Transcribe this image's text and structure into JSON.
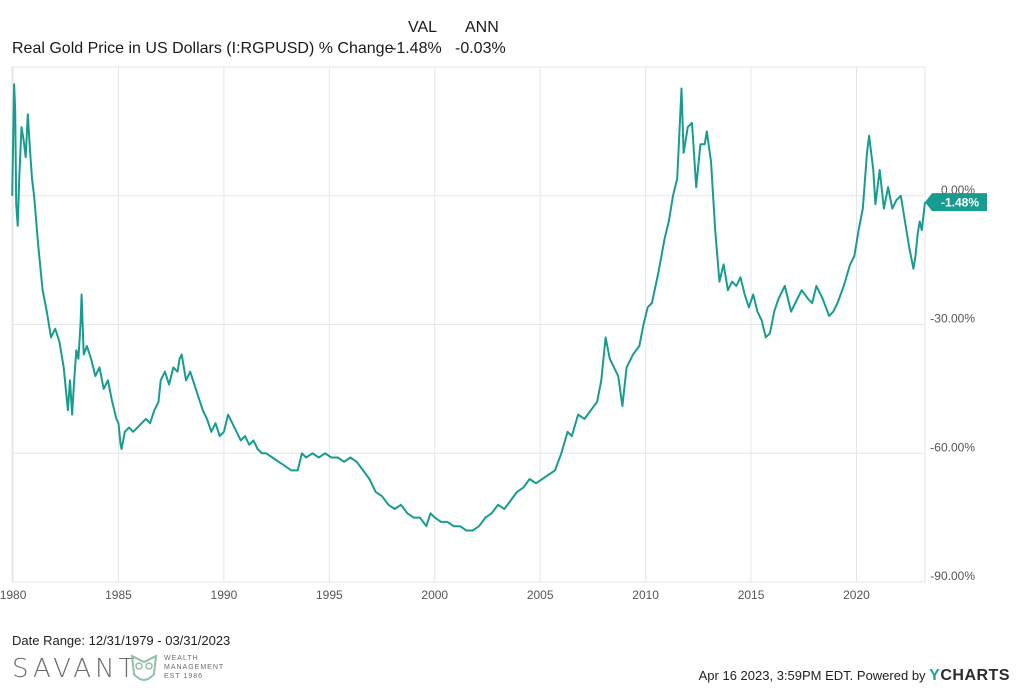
{
  "header": {
    "val_label": "VAL",
    "ann_label": "ANN",
    "series_name": "Real Gold Price in US Dollars (I:RGPUSD) % Change",
    "series_val": "-1.48%",
    "series_ann": "-0.03%"
  },
  "chart_data": {
    "type": "line",
    "title": "",
    "xlabel": "",
    "ylabel": "",
    "x_ticks": [
      "1980",
      "1985",
      "1990",
      "1995",
      "2000",
      "2005",
      "2010",
      "2015",
      "2020"
    ],
    "y_ticks": [
      "0.00%",
      "-30.00%",
      "-60.00%",
      "-90.00%"
    ],
    "ylim": [
      -90,
      30
    ],
    "xlim": [
      1979.95,
      2023.25
    ],
    "grid": true,
    "last_value_label": "-1.48%",
    "series": [
      {
        "values": [
          [
            1979.96,
            0.0
          ],
          [
            1980.05,
            26
          ],
          [
            1980.1,
            20
          ],
          [
            1980.15,
            -2
          ],
          [
            1980.22,
            -7
          ],
          [
            1980.3,
            5
          ],
          [
            1980.4,
            16
          ],
          [
            1980.5,
            13
          ],
          [
            1980.6,
            9
          ],
          [
            1980.7,
            19
          ],
          [
            1980.8,
            11
          ],
          [
            1980.9,
            4
          ],
          [
            1981.0,
            0
          ],
          [
            1981.2,
            -12
          ],
          [
            1981.4,
            -22
          ],
          [
            1981.6,
            -27
          ],
          [
            1981.8,
            -33
          ],
          [
            1982.0,
            -31
          ],
          [
            1982.2,
            -34
          ],
          [
            1982.4,
            -40
          ],
          [
            1982.6,
            -50
          ],
          [
            1982.7,
            -43
          ],
          [
            1982.8,
            -51
          ],
          [
            1982.9,
            -43
          ],
          [
            1983.0,
            -36
          ],
          [
            1983.1,
            -38
          ],
          [
            1983.2,
            -30
          ],
          [
            1983.25,
            -23
          ],
          [
            1983.35,
            -37
          ],
          [
            1983.5,
            -35
          ],
          [
            1983.7,
            -38
          ],
          [
            1983.9,
            -42
          ],
          [
            1984.1,
            -40
          ],
          [
            1984.3,
            -45
          ],
          [
            1984.5,
            -43
          ],
          [
            1984.7,
            -48
          ],
          [
            1984.9,
            -52
          ],
          [
            1985.0,
            -53
          ],
          [
            1985.1,
            -58
          ],
          [
            1985.15,
            -59
          ],
          [
            1985.3,
            -55
          ],
          [
            1985.5,
            -54
          ],
          [
            1985.7,
            -55
          ],
          [
            1985.9,
            -54
          ],
          [
            1986.1,
            -53
          ],
          [
            1986.3,
            -52
          ],
          [
            1986.5,
            -53
          ],
          [
            1986.7,
            -50
          ],
          [
            1986.9,
            -48
          ],
          [
            1987.0,
            -43
          ],
          [
            1987.2,
            -41
          ],
          [
            1987.4,
            -44
          ],
          [
            1987.6,
            -40
          ],
          [
            1987.8,
            -41
          ],
          [
            1987.9,
            -38
          ],
          [
            1988.0,
            -37
          ],
          [
            1988.2,
            -43
          ],
          [
            1988.4,
            -41
          ],
          [
            1988.6,
            -44
          ],
          [
            1988.8,
            -47
          ],
          [
            1989.0,
            -50
          ],
          [
            1989.2,
            -52
          ],
          [
            1989.4,
            -55
          ],
          [
            1989.6,
            -53
          ],
          [
            1989.8,
            -56
          ],
          [
            1990.0,
            -55
          ],
          [
            1990.2,
            -51
          ],
          [
            1990.4,
            -53
          ],
          [
            1990.6,
            -55
          ],
          [
            1990.8,
            -57
          ],
          [
            1991.0,
            -56
          ],
          [
            1991.2,
            -58
          ],
          [
            1991.4,
            -57
          ],
          [
            1991.6,
            -59
          ],
          [
            1991.8,
            -60
          ],
          [
            1992.0,
            -60
          ],
          [
            1992.3,
            -61
          ],
          [
            1992.6,
            -62
          ],
          [
            1992.9,
            -63
          ],
          [
            1993.2,
            -64
          ],
          [
            1993.5,
            -64
          ],
          [
            1993.7,
            -60
          ],
          [
            1993.9,
            -61
          ],
          [
            1994.2,
            -60
          ],
          [
            1994.5,
            -61
          ],
          [
            1994.8,
            -60
          ],
          [
            1995.1,
            -61
          ],
          [
            1995.4,
            -61
          ],
          [
            1995.7,
            -62
          ],
          [
            1996.0,
            -61
          ],
          [
            1996.3,
            -62
          ],
          [
            1996.6,
            -64
          ],
          [
            1996.9,
            -66
          ],
          [
            1997.2,
            -69
          ],
          [
            1997.5,
            -70
          ],
          [
            1997.8,
            -72
          ],
          [
            1998.1,
            -73
          ],
          [
            1998.4,
            -72
          ],
          [
            1998.7,
            -74
          ],
          [
            1999.0,
            -75
          ],
          [
            1999.3,
            -75
          ],
          [
            1999.6,
            -77
          ],
          [
            1999.8,
            -74
          ],
          [
            2000.0,
            -75
          ],
          [
            2000.3,
            -76
          ],
          [
            2000.6,
            -76
          ],
          [
            2000.9,
            -77
          ],
          [
            2001.2,
            -77
          ],
          [
            2001.5,
            -78
          ],
          [
            2001.8,
            -78
          ],
          [
            2002.1,
            -77
          ],
          [
            2002.4,
            -75
          ],
          [
            2002.7,
            -74
          ],
          [
            2003.0,
            -72
          ],
          [
            2003.3,
            -73
          ],
          [
            2003.6,
            -71
          ],
          [
            2003.9,
            -69
          ],
          [
            2004.2,
            -68
          ],
          [
            2004.5,
            -66
          ],
          [
            2004.8,
            -67
          ],
          [
            2005.1,
            -66
          ],
          [
            2005.4,
            -65
          ],
          [
            2005.7,
            -64
          ],
          [
            2006.0,
            -60
          ],
          [
            2006.3,
            -55
          ],
          [
            2006.5,
            -56
          ],
          [
            2006.8,
            -51
          ],
          [
            2007.1,
            -52
          ],
          [
            2007.4,
            -50
          ],
          [
            2007.7,
            -48
          ],
          [
            2007.9,
            -43
          ],
          [
            2008.1,
            -33
          ],
          [
            2008.3,
            -38
          ],
          [
            2008.5,
            -40
          ],
          [
            2008.7,
            -42
          ],
          [
            2008.9,
            -49
          ],
          [
            2009.1,
            -40
          ],
          [
            2009.4,
            -37
          ],
          [
            2009.7,
            -35
          ],
          [
            2009.9,
            -30
          ],
          [
            2010.1,
            -26
          ],
          [
            2010.3,
            -25
          ],
          [
            2010.6,
            -18
          ],
          [
            2010.9,
            -10
          ],
          [
            2011.1,
            -6
          ],
          [
            2011.3,
            0
          ],
          [
            2011.5,
            4
          ],
          [
            2011.7,
            25
          ],
          [
            2011.8,
            10
          ],
          [
            2012.0,
            16
          ],
          [
            2012.2,
            17
          ],
          [
            2012.4,
            2
          ],
          [
            2012.6,
            12
          ],
          [
            2012.8,
            12
          ],
          [
            2012.9,
            15
          ],
          [
            2013.1,
            8
          ],
          [
            2013.3,
            -8
          ],
          [
            2013.5,
            -20
          ],
          [
            2013.7,
            -16
          ],
          [
            2013.9,
            -22
          ],
          [
            2014.1,
            -20
          ],
          [
            2014.3,
            -21
          ],
          [
            2014.5,
            -19
          ],
          [
            2014.7,
            -23
          ],
          [
            2014.9,
            -26
          ],
          [
            2015.1,
            -23
          ],
          [
            2015.3,
            -27
          ],
          [
            2015.5,
            -29
          ],
          [
            2015.7,
            -33
          ],
          [
            2015.9,
            -32
          ],
          [
            2016.1,
            -27
          ],
          [
            2016.3,
            -24
          ],
          [
            2016.6,
            -21
          ],
          [
            2016.9,
            -27
          ],
          [
            2017.1,
            -25
          ],
          [
            2017.4,
            -22
          ],
          [
            2017.7,
            -24
          ],
          [
            2017.9,
            -25
          ],
          [
            2018.1,
            -21
          ],
          [
            2018.4,
            -24
          ],
          [
            2018.7,
            -28
          ],
          [
            2018.9,
            -27
          ],
          [
            2019.1,
            -25
          ],
          [
            2019.4,
            -21
          ],
          [
            2019.7,
            -16
          ],
          [
            2019.9,
            -14
          ],
          [
            2020.1,
            -8
          ],
          [
            2020.3,
            -3
          ],
          [
            2020.5,
            10
          ],
          [
            2020.6,
            14
          ],
          [
            2020.8,
            6
          ],
          [
            2020.9,
            -2
          ],
          [
            2021.1,
            6
          ],
          [
            2021.3,
            -3
          ],
          [
            2021.5,
            2
          ],
          [
            2021.7,
            -3
          ],
          [
            2021.9,
            -1
          ],
          [
            2022.1,
            0
          ],
          [
            2022.3,
            -6
          ],
          [
            2022.5,
            -12
          ],
          [
            2022.7,
            -17
          ],
          [
            2022.8,
            -14
          ],
          [
            2022.9,
            -9
          ],
          [
            2023.0,
            -6
          ],
          [
            2023.1,
            -8
          ],
          [
            2023.25,
            -1.48
          ]
        ]
      }
    ]
  },
  "footer": {
    "date_range": "Date Range: 12/31/1979 - 03/31/2023",
    "credit": "Apr 16 2023, 3:59PM EDT. Powered by ",
    "ycharts_y": "Y",
    "ycharts_rest": "CHARTS"
  },
  "logo": {
    "brand": "SAVANT",
    "line1": "WEALTH",
    "line2": "MANAGEMENT",
    "line3": "EST 1986"
  },
  "colors": {
    "line": "#199c90",
    "grid": "#e6e6e6",
    "accent_badge": "#199c90"
  }
}
